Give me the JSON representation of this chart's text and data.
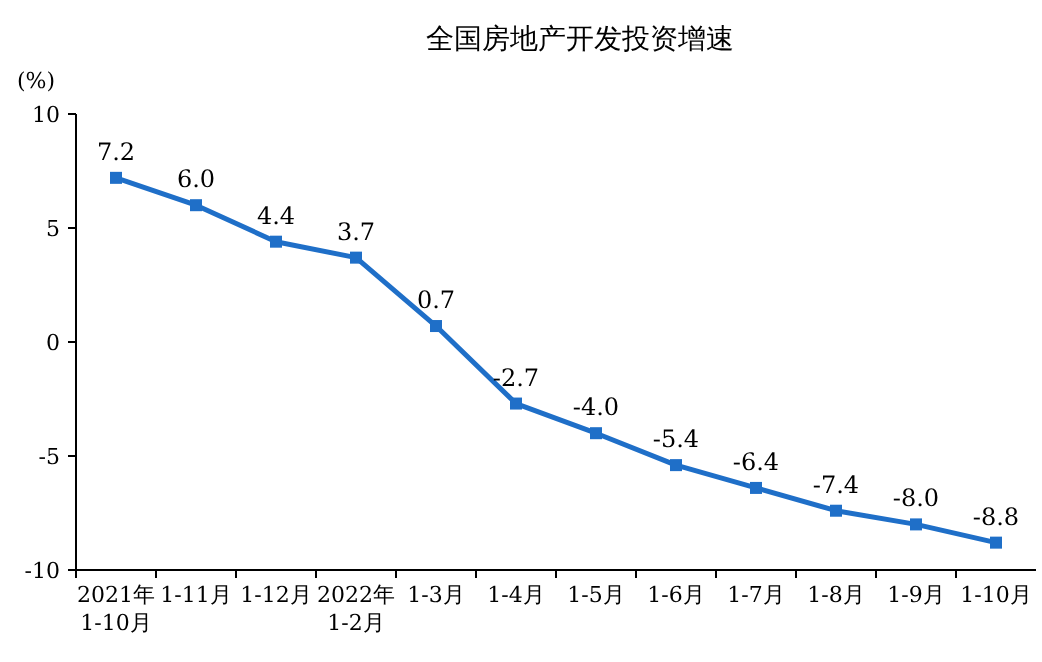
{
  "chart_data": {
    "type": "line",
    "title": "全国房地产开发投资增速",
    "ylabel": "(%)",
    "categories": [
      "2021年\n1-10月",
      "1-11月",
      "1-12月",
      "2022年\n1-2月",
      "1-3月",
      "1-4月",
      "1-5月",
      "1-6月",
      "1-7月",
      "1-8月",
      "1-9月",
      "1-10月"
    ],
    "series": [
      {
        "color": "#1f6fc8",
        "values": [
          7.2,
          6.0,
          4.4,
          3.7,
          0.7,
          -2.7,
          -4.0,
          -5.4,
          -6.4,
          -7.4,
          -8.0,
          -8.8
        ],
        "value_labels": [
          "7.2",
          "6.0",
          "4.4",
          "3.7",
          "0.7",
          "-2.7",
          "-4.0",
          "-5.4",
          "-6.4",
          "-7.4",
          "-8.0",
          "-8.8"
        ]
      }
    ],
    "ylim": [
      -10,
      10
    ],
    "yticks": [
      -10,
      -5,
      0,
      5,
      10
    ],
    "marker": "square",
    "line_style": "solid"
  }
}
